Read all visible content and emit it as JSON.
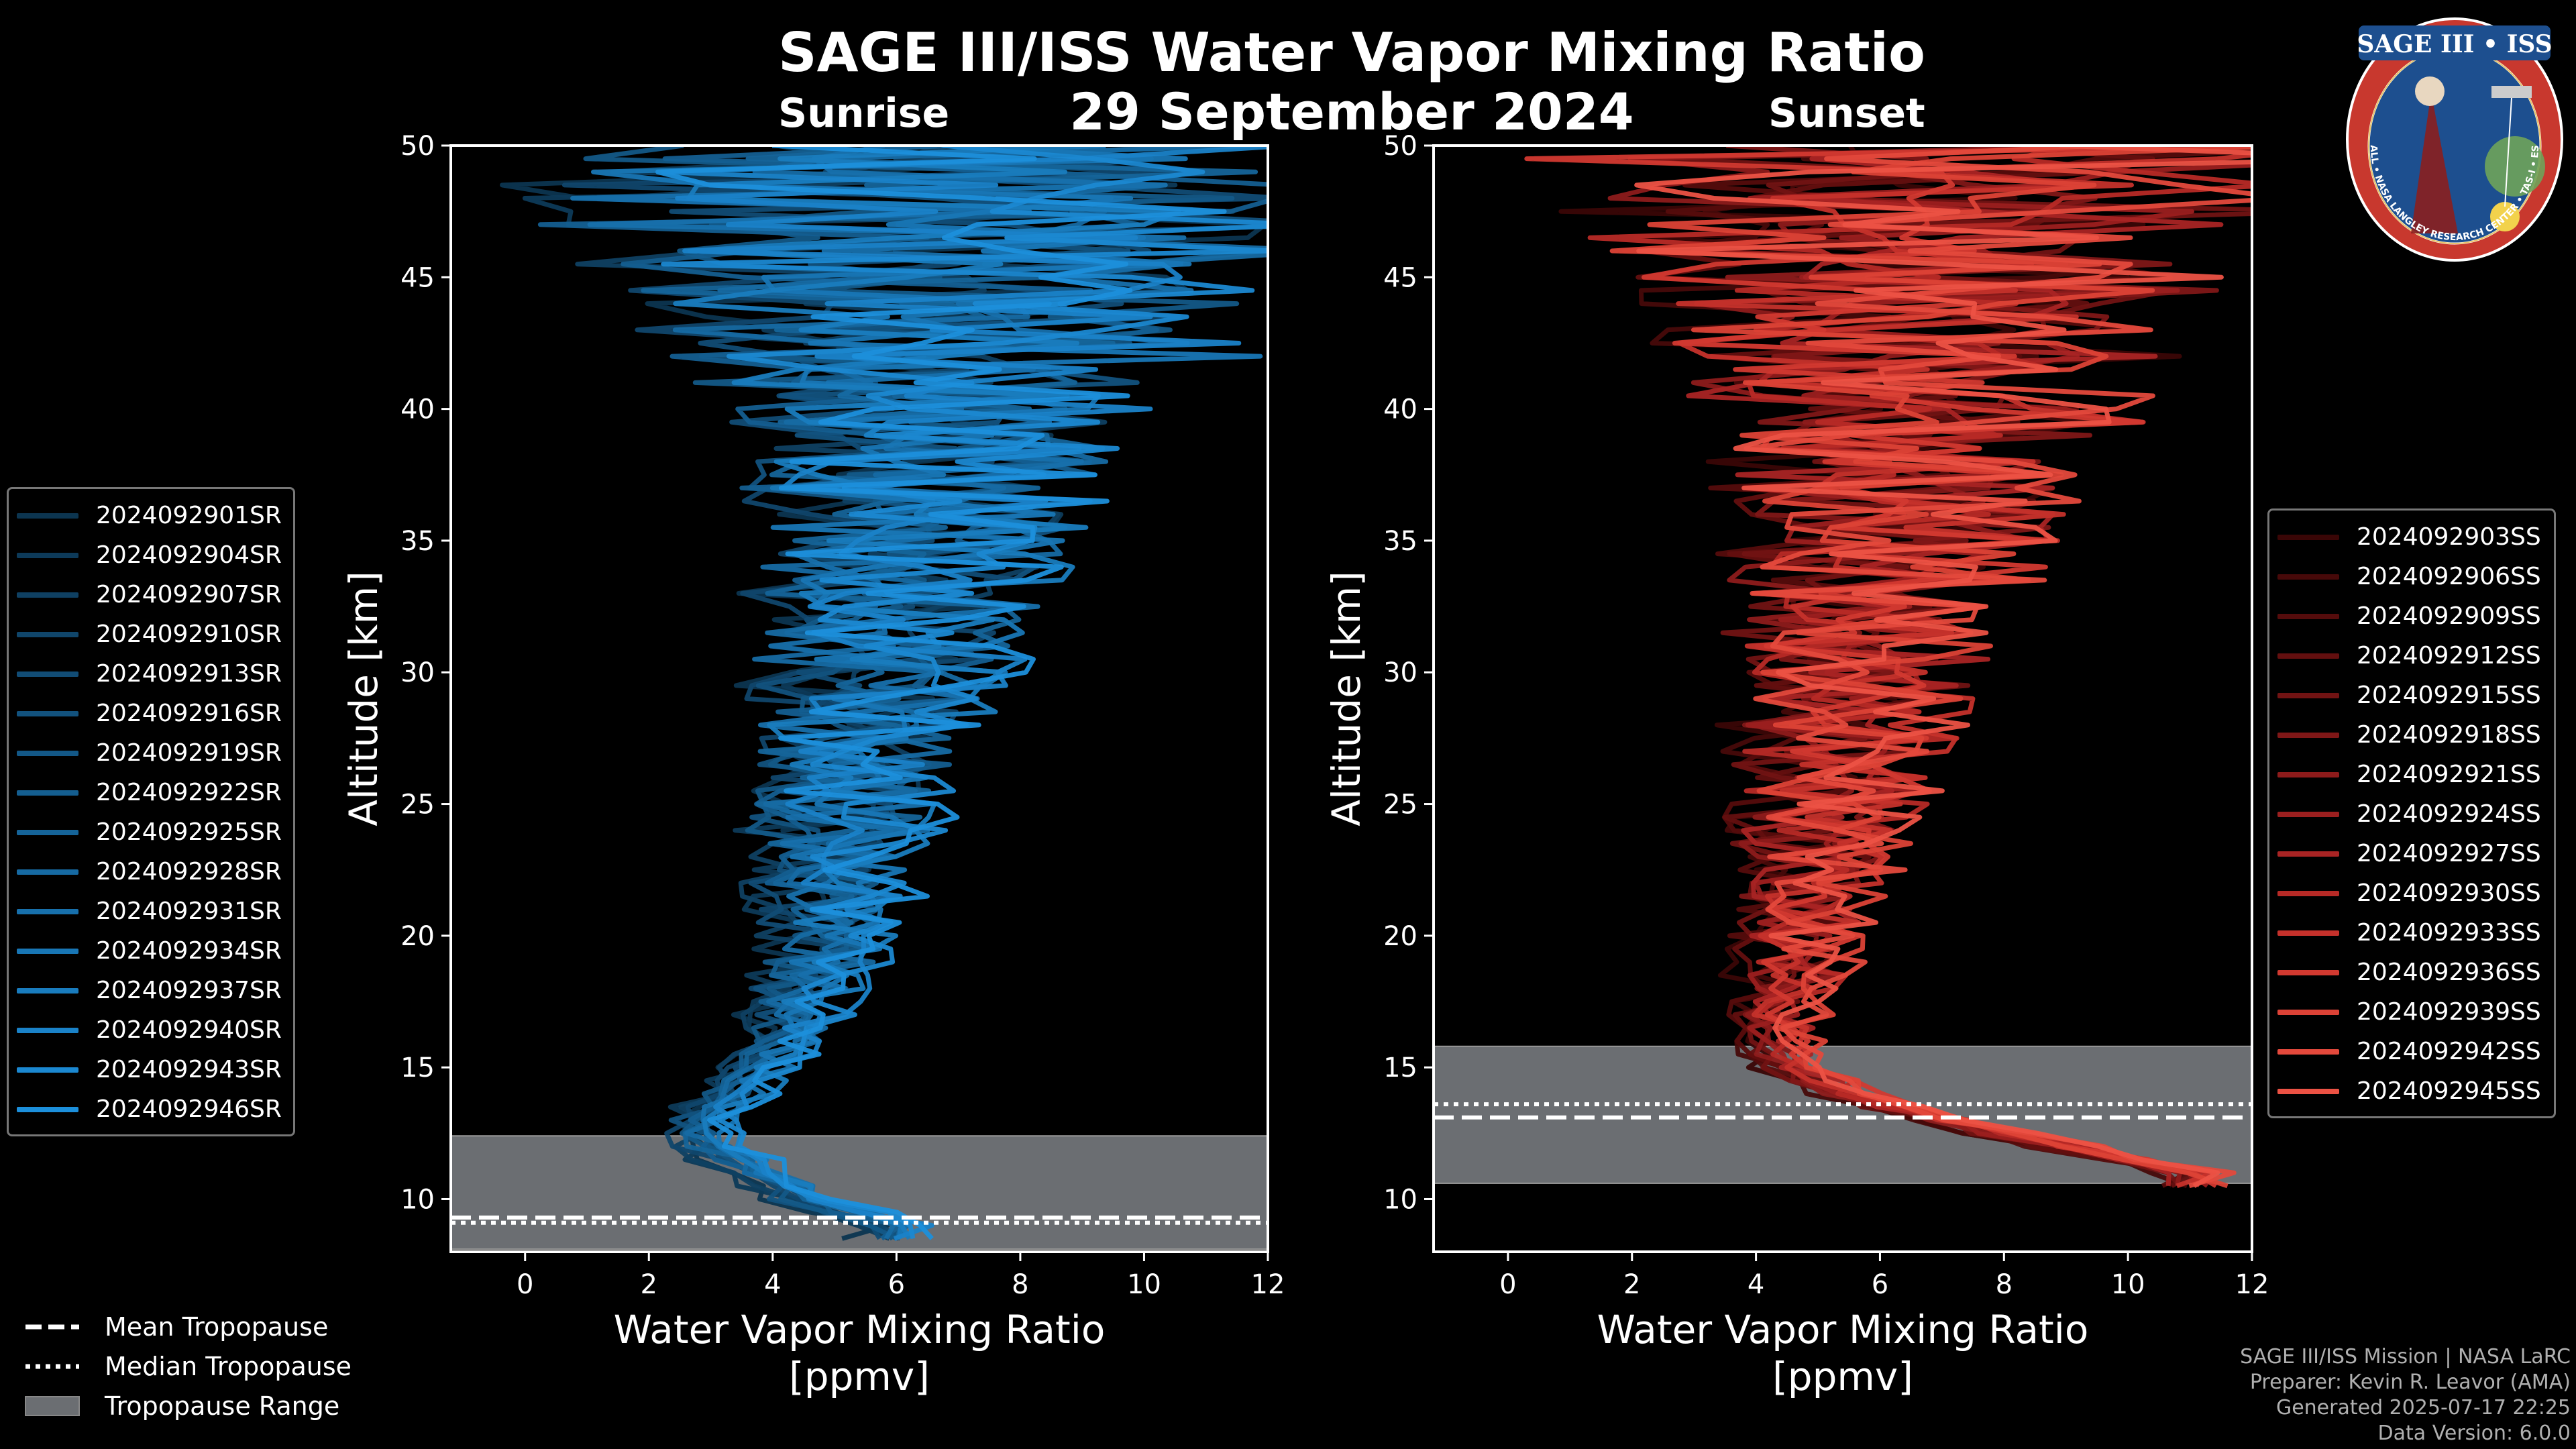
{
  "titles": {
    "main": "SAGE III/ISS Water Vapor Mixing Ratio",
    "date": "29 September 2024",
    "sunrise": "Sunrise",
    "sunset": "Sunset"
  },
  "chart_data": [
    {
      "type": "line",
      "panel": "sunrise",
      "title": "Sunrise",
      "xlabel": "Water Vapor Mixing Ratio [ppmv]",
      "ylabel": "Altitude [km]",
      "xlim": [
        -1.2,
        12
      ],
      "ylim": [
        8,
        50
      ],
      "xticks": [
        0,
        2,
        4,
        6,
        8,
        10,
        12
      ],
      "yticks": [
        10,
        15,
        20,
        25,
        30,
        35,
        40,
        45,
        50
      ],
      "profile_altitude_km": [
        9,
        10,
        11,
        12,
        13,
        14,
        15,
        16,
        17,
        18,
        19,
        20,
        22,
        24,
        26,
        28,
        30,
        32,
        34,
        36,
        38,
        40,
        42,
        44,
        46,
        48,
        50
      ],
      "profile_mean_ppmv": [
        6.0,
        4.5,
        3.8,
        3.0,
        2.9,
        3.4,
        3.8,
        4.2,
        4.4,
        4.6,
        4.8,
        4.9,
        5.0,
        5.1,
        5.3,
        5.5,
        5.7,
        5.9,
        6.2,
        6.4,
        6.5,
        6.6,
        6.7,
        6.8,
        6.9,
        7.0,
        7.0
      ],
      "tropopause": {
        "mean_km": 9.3,
        "median_km": 9.1,
        "range_km": [
          8.1,
          12.4
        ]
      },
      "series": [
        {
          "name": "2024092901SR",
          "color": "#0c3550"
        },
        {
          "name": "2024092904SR",
          "color": "#0d3a59"
        },
        {
          "name": "2024092907SR",
          "color": "#0f4062"
        },
        {
          "name": "2024092910SR",
          "color": "#10466b"
        },
        {
          "name": "2024092913SR",
          "color": "#114c75"
        },
        {
          "name": "2024092916SR",
          "color": "#12527e"
        },
        {
          "name": "2024092919SR",
          "color": "#135887"
        },
        {
          "name": "2024092922SR",
          "color": "#145e90"
        },
        {
          "name": "2024092925SR",
          "color": "#156499"
        },
        {
          "name": "2024092928SR",
          "color": "#166aa3"
        },
        {
          "name": "2024092931SR",
          "color": "#1770ac"
        },
        {
          "name": "2024092934SR",
          "color": "#1876b5"
        },
        {
          "name": "2024092937SR",
          "color": "#197cbe"
        },
        {
          "name": "2024092940SR",
          "color": "#1a82c8"
        },
        {
          "name": "2024092943SR",
          "color": "#1b88d1"
        },
        {
          "name": "2024092946SR",
          "color": "#1c8fdb"
        }
      ]
    },
    {
      "type": "line",
      "panel": "sunset",
      "title": "Sunset",
      "xlabel": "Water Vapor Mixing Ratio [ppmv]",
      "ylabel": "Altitude [km]",
      "xlim": [
        -1.2,
        12
      ],
      "ylim": [
        8,
        50
      ],
      "xticks": [
        0,
        2,
        4,
        6,
        8,
        10,
        12
      ],
      "yticks": [
        10,
        15,
        20,
        25,
        30,
        35,
        40,
        45,
        50
      ],
      "profile_altitude_km": [
        11,
        12,
        13,
        14,
        15,
        16,
        17,
        18,
        19,
        20,
        22,
        24,
        26,
        28,
        30,
        32,
        34,
        36,
        38,
        40,
        42,
        44,
        46,
        48,
        50
      ],
      "profile_mean_ppmv": [
        11.0,
        9.0,
        7.0,
        5.5,
        4.7,
        4.4,
        4.4,
        4.6,
        4.7,
        4.8,
        5.0,
        5.1,
        5.3,
        5.5,
        5.7,
        5.9,
        6.1,
        6.3,
        6.4,
        6.5,
        6.6,
        6.7,
        6.8,
        6.9,
        7.0
      ],
      "tropopause": {
        "mean_km": 13.1,
        "median_km": 13.6,
        "range_km": [
          10.6,
          15.8
        ]
      },
      "series": [
        {
          "name": "2024092903SS",
          "color": "#3a0606"
        },
        {
          "name": "2024092906SS",
          "color": "#470909"
        },
        {
          "name": "2024092909SS",
          "color": "#550c0c"
        },
        {
          "name": "2024092912SS",
          "color": "#630f0f"
        },
        {
          "name": "2024092915SS",
          "color": "#711313"
        },
        {
          "name": "2024092918SS",
          "color": "#7f1717"
        },
        {
          "name": "2024092921SS",
          "color": "#8d1b1b"
        },
        {
          "name": "2024092924SS",
          "color": "#9b1f1f"
        },
        {
          "name": "2024092927SS",
          "color": "#a92424"
        },
        {
          "name": "2024092930SS",
          "color": "#b72a26"
        },
        {
          "name": "2024092933SS",
          "color": "#c5312b"
        },
        {
          "name": "2024092936SS",
          "color": "#d23930"
        },
        {
          "name": "2024092939SS",
          "color": "#dc4236"
        },
        {
          "name": "2024092942SS",
          "color": "#e4493c"
        },
        {
          "name": "2024092945SS",
          "color": "#ec5244"
        }
      ]
    }
  ],
  "tropopause_legend": {
    "mean": "Mean Tropopause",
    "median": "Median Tropopause",
    "range": "Tropopause Range"
  },
  "credits": {
    "line1": "SAGE III/ISS Mission | NASA LaRC",
    "line2": "Preparer: Kevin R. Leavor (AMA)",
    "line3": "Generated 2025-07-17 22:25",
    "line4": "Data Version: 6.0.0"
  },
  "badge": {
    "top_text": "SAGE III • ISS",
    "ring_text": "BALL • NASA LANGLEY RESEARCH CENTER • TAS-I • ESA"
  },
  "colors": {
    "tropo_range": "#6b6e72",
    "axes": "#ffffff",
    "badge_ring": "#c8382e",
    "badge_inner": "#1d4f8f"
  }
}
